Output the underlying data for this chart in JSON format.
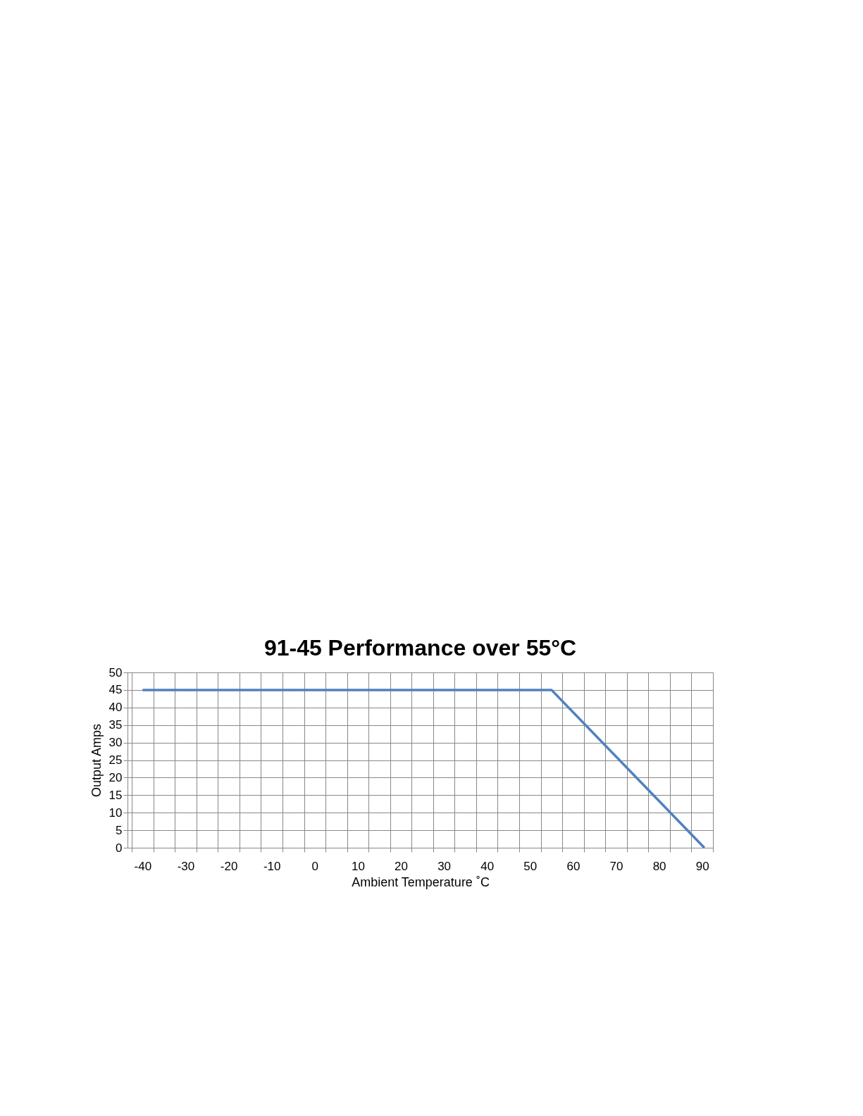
{
  "chart_data": {
    "type": "line",
    "title": "91-45 Performance over 55°C",
    "xlabel": "Ambient Temperature ˚C",
    "ylabel": "Output Amps",
    "x": [
      -40,
      55,
      90.5
    ],
    "series": [
      {
        "color": "#4f81bd",
        "values": [
          45,
          45,
          0
        ]
      }
    ],
    "xlim": [
      -43.5,
      92.5
    ],
    "xticks": [
      {
        "value": -42.5,
        "label": null
      },
      -40,
      {
        "value": -37.5,
        "label": null
      },
      {
        "value": -32.5,
        "label": null
      },
      -30,
      {
        "value": -27.5,
        "label": null
      },
      {
        "value": -22.5,
        "label": null
      },
      -20,
      {
        "value": -17.5,
        "label": null
      },
      {
        "value": -12.5,
        "label": null
      },
      -10,
      {
        "value": -7.5,
        "label": null
      },
      {
        "value": -2.5,
        "label": null
      },
      0,
      {
        "value": 2.5,
        "label": null
      },
      {
        "value": 7.5,
        "label": null
      },
      10,
      {
        "value": 12.5,
        "label": null
      },
      {
        "value": 17.5,
        "label": null
      },
      20,
      {
        "value": 22.5,
        "label": null
      },
      {
        "value": 27.5,
        "label": null
      },
      30,
      {
        "value": 32.5,
        "label": null
      },
      {
        "value": 37.5,
        "label": null
      },
      40,
      {
        "value": 42.5,
        "label": null
      },
      {
        "value": 47.5,
        "label": null
      },
      50,
      {
        "value": 52.5,
        "label": null
      },
      {
        "value": 57.5,
        "label": null
      },
      60,
      {
        "value": 62.5,
        "label": null
      },
      {
        "value": 67.5,
        "label": null
      },
      70,
      {
        "value": 72.5,
        "label": null
      },
      {
        "value": 77.5,
        "label": null
      },
      80,
      {
        "value": 82.5,
        "label": null
      },
      {
        "value": 87.5,
        "label": null
      },
      90,
      {
        "value": 92.5,
        "label": null
      }
    ],
    "ylim": [
      0,
      50
    ],
    "yticks": [
      0,
      5,
      10,
      15,
      20,
      25,
      30,
      35,
      40,
      45,
      50
    ],
    "grid": true,
    "marker": "none",
    "line_style": "solid"
  }
}
